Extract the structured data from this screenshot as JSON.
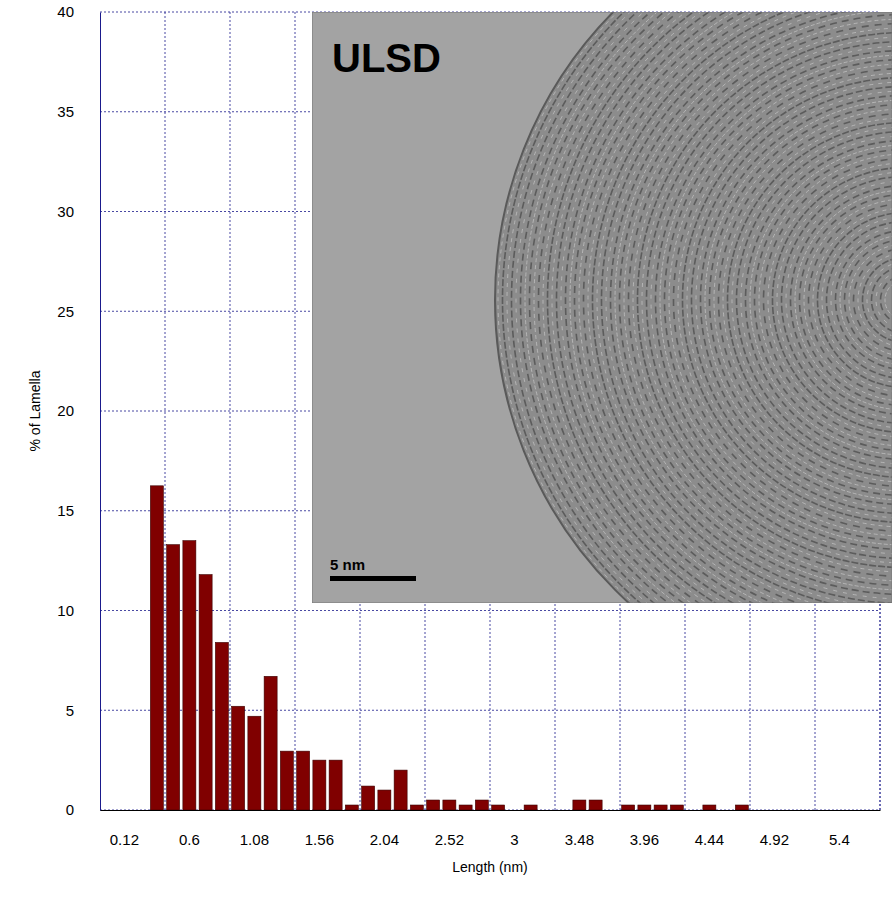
{
  "chart_data": {
    "type": "bar",
    "x_label": "Length (nm)",
    "y_label": "% of Lamella",
    "annotations": [
      "ULSD",
      "5 nm"
    ],
    "categories": [
      null,
      "0.12",
      null,
      null,
      null,
      "0.6",
      null,
      null,
      null,
      "1.08",
      null,
      null,
      null,
      "1.56",
      null,
      null,
      null,
      "2.04",
      null,
      null,
      null,
      "2.52",
      null,
      null,
      null,
      "3",
      null,
      null,
      null,
      "3.48",
      null,
      null,
      null,
      "3.96",
      null,
      null,
      null,
      "4.44",
      null,
      null,
      null,
      "4.92",
      null,
      null,
      null,
      "5.4",
      null,
      null
    ],
    "values": [
      0,
      0,
      0,
      16.25,
      13.3,
      13.5,
      11.8,
      8.4,
      5.2,
      4.7,
      6.7,
      2.95,
      2.95,
      2.5,
      2.5,
      0.25,
      1.2,
      1,
      2,
      0.25,
      0.5,
      0.5,
      0.25,
      0.5,
      0.25,
      0,
      0.25,
      0,
      0,
      0.5,
      0.5,
      0,
      0.25,
      0.25,
      0.25,
      0.25,
      0,
      0.25,
      0,
      0.25,
      0,
      0,
      0,
      0,
      0,
      0,
      0,
      0
    ],
    "color": "#800000",
    "ylim": [
      0,
      40
    ],
    "yticks": [
      0,
      5,
      10,
      15,
      20,
      25,
      30,
      35,
      40
    ],
    "grid": true
  }
}
